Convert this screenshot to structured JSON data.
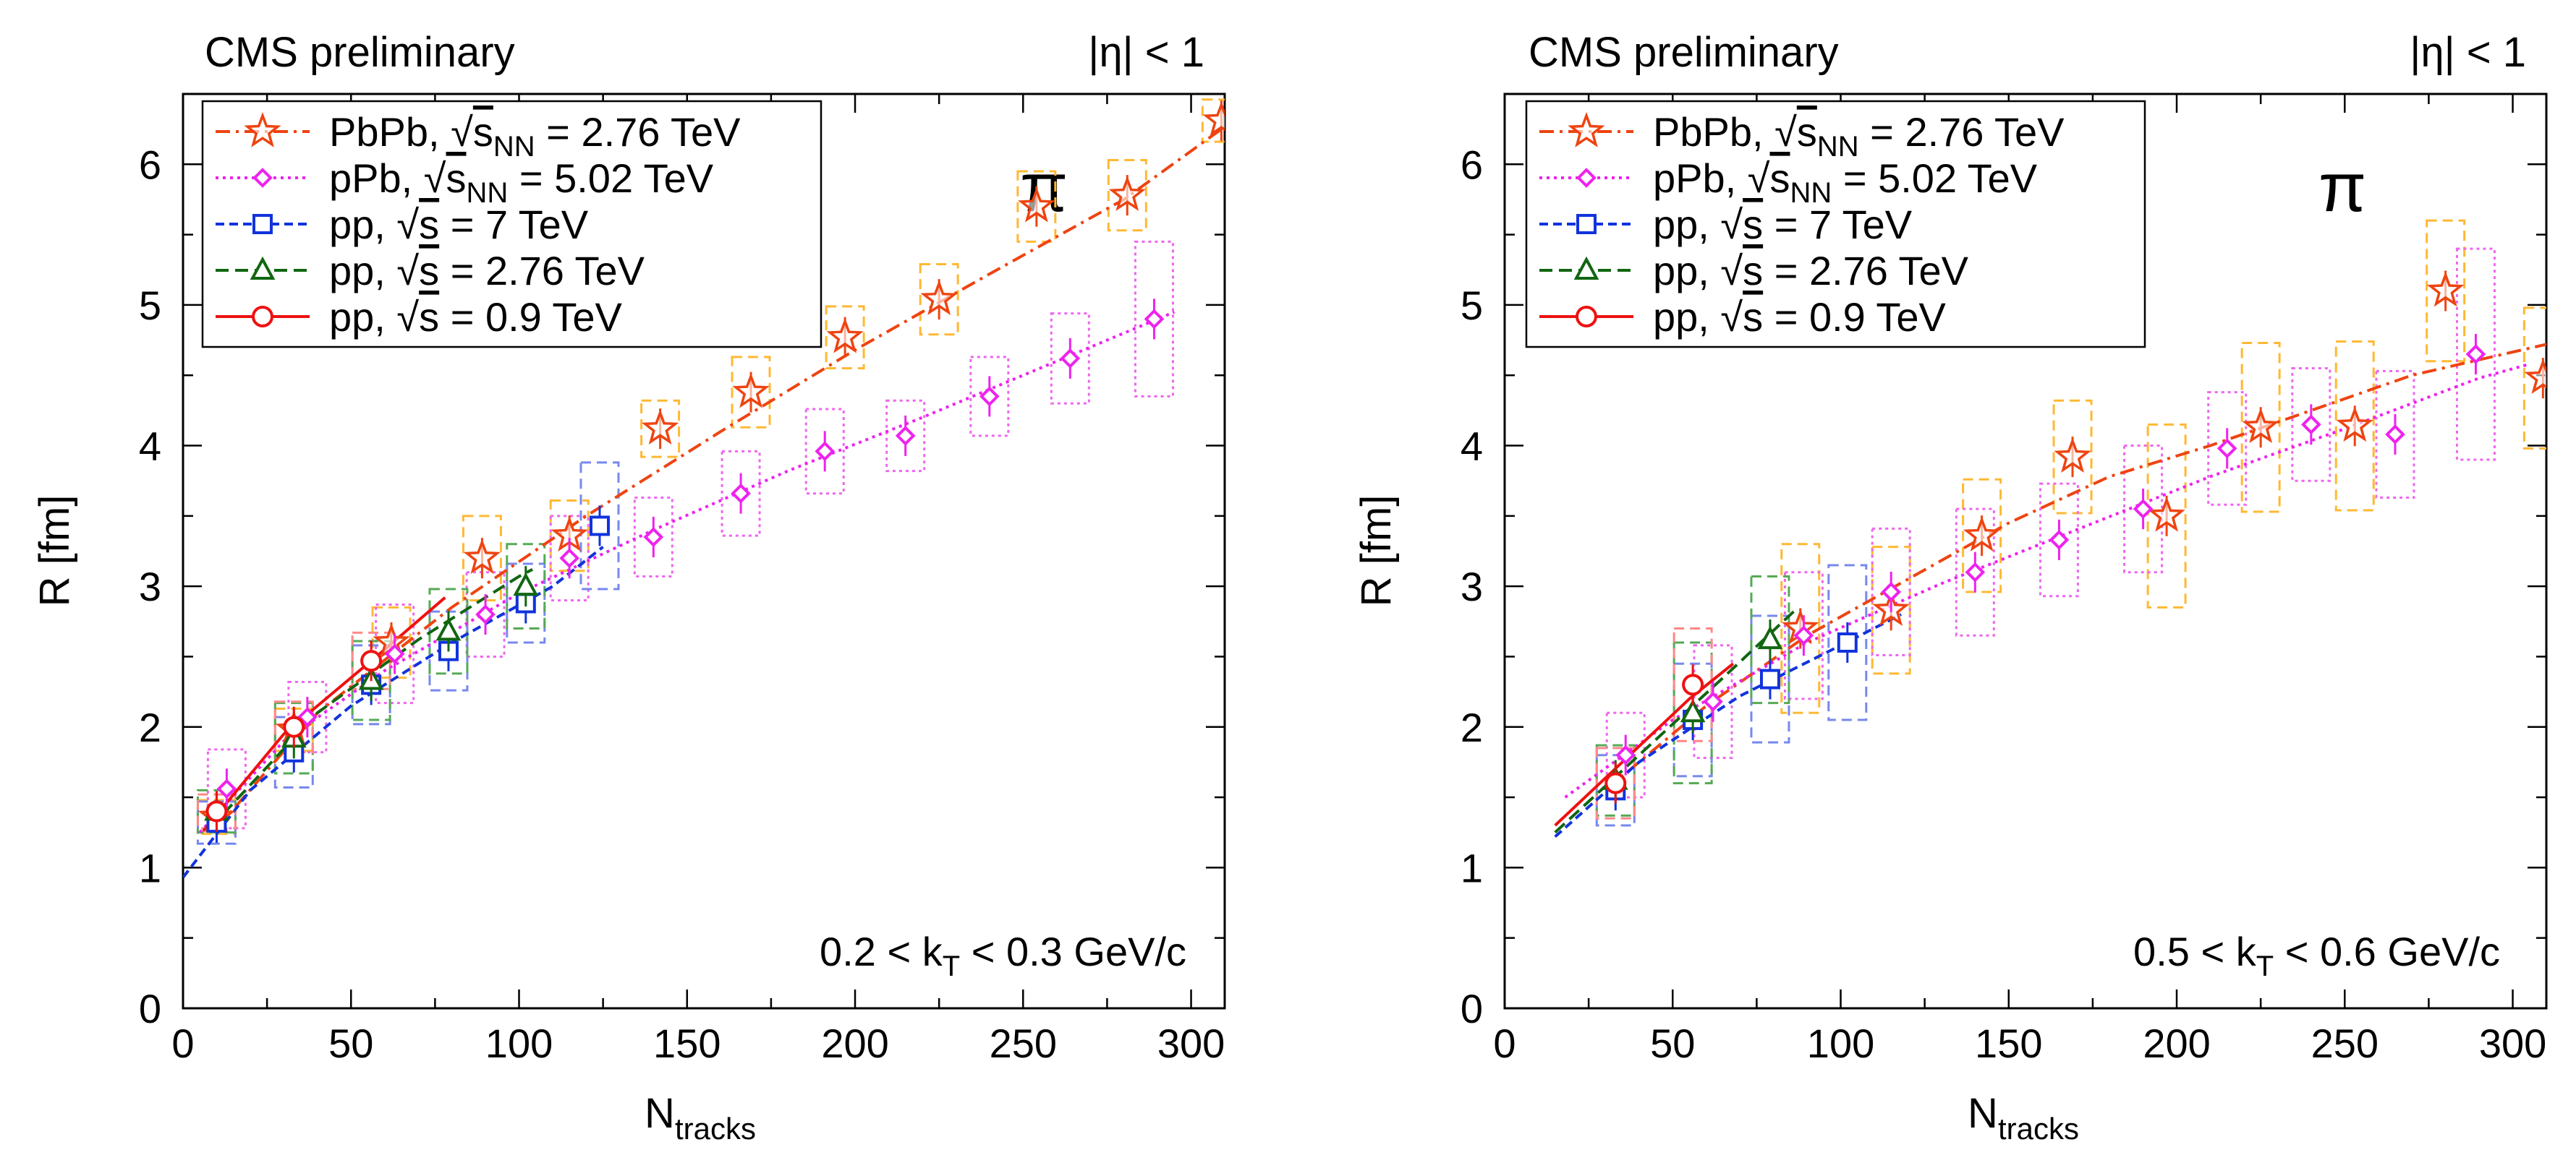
{
  "figure_title": "CMS preliminary two-panel HBT radius vs N_tracks",
  "legend_entries": [
    {
      "key": "pbpb",
      "collision": "PbPb, ",
      "sqrt": "s",
      "sub": "NN",
      "energy": " = 2.76 TeV",
      "color": "#ee4411",
      "box_color": "#ffb833",
      "marker": "star",
      "dash": "20,8,4,8"
    },
    {
      "key": "ppb",
      "collision": "pPb, ",
      "sqrt": "s",
      "sub": "NN",
      "energy": " = 5.02 TeV",
      "color": "#ee22ee",
      "box_color": "#ee66ee",
      "marker": "diamond",
      "dash": "4,6"
    },
    {
      "key": "pp7",
      "collision": "pp, ",
      "sqrt": "s",
      "sub": "",
      "energy": " = 7 TeV",
      "color": "#1133dd",
      "box_color": "#7788ee",
      "marker": "square",
      "dash": "12,7"
    },
    {
      "key": "pp276",
      "collision": "pp, ",
      "sqrt": "s",
      "sub": "",
      "energy": " = 2.76 TeV",
      "color": "#116611",
      "box_color": "#55aa55",
      "marker": "triangle",
      "dash": "18,9"
    },
    {
      "key": "pp09",
      "collision": "pp, ",
      "sqrt": "s",
      "sub": "",
      "energy": " = 0.9 TeV",
      "color": "#ee1111",
      "box_color": "#ff8888",
      "marker": "circle",
      "dash": ""
    }
  ],
  "chart_data": [
    {
      "type": "scatter",
      "panel": "left",
      "title_left": "CMS preliminary",
      "title_right": "|η| < 1",
      "particle_label": "π",
      "kt_label": {
        "prefix": "0.2 < k",
        "sub": "T",
        "suffix": " < 0.3 GeV/c"
      },
      "xlabel": {
        "main": "N",
        "sub": "tracks"
      },
      "ylabel": "R [fm]",
      "xlim": [
        0,
        310
      ],
      "ylim": [
        0,
        6.5
      ],
      "x_ticks": [
        0,
        50,
        100,
        150,
        200,
        250,
        300
      ],
      "x_tick_labels": [
        "0",
        "50",
        "100",
        "150",
        "200",
        "250",
        "300"
      ],
      "y_ticks": [
        0,
        1,
        2,
        3,
        4,
        5,
        6
      ],
      "y_tick_labels": [
        "0",
        "1",
        "2",
        "3",
        "4",
        "5",
        "6"
      ],
      "series": [
        {
          "key": "pbpb",
          "points": [
            [
              10,
              1.36
            ],
            [
              33,
              1.98
            ],
            [
              62,
              2.6
            ],
            [
              89,
              3.2
            ],
            [
              115,
              3.36
            ],
            [
              142,
              4.12
            ],
            [
              169,
              4.38
            ],
            [
              197,
              4.77
            ],
            [
              225,
              5.04
            ],
            [
              254,
              5.7
            ],
            [
              281,
              5.78
            ],
            [
              309,
              6.31
            ]
          ],
          "syst": [
            0.12,
            0.15,
            0.25,
            0.3,
            0.25,
            0.2,
            0.25,
            0.22,
            0.25,
            0.25,
            0.25,
            0.15
          ],
          "fit": [
            [
              10,
              1.28
            ],
            [
              40,
              2.1
            ],
            [
              80,
              2.85
            ],
            [
              120,
              3.5
            ],
            [
              160,
              4.1
            ],
            [
              200,
              4.68
            ],
            [
              240,
              5.22
            ],
            [
              280,
              5.75
            ],
            [
              309,
              6.25
            ]
          ]
        },
        {
          "key": "ppb",
          "points": [
            [
              13,
              1.56
            ],
            [
              37,
              2.07
            ],
            [
              63,
              2.52
            ],
            [
              90,
              2.8
            ],
            [
              115,
              3.2
            ],
            [
              140,
              3.35
            ],
            [
              166,
              3.66
            ],
            [
              191,
              3.96
            ],
            [
              215,
              4.07
            ],
            [
              240,
              4.35
            ],
            [
              264,
              4.62
            ],
            [
              289,
              4.9
            ]
          ],
          "syst": [
            0.28,
            0.25,
            0.35,
            0.3,
            0.3,
            0.28,
            0.3,
            0.3,
            0.25,
            0.28,
            0.32,
            0.55
          ],
          "fit": [
            [
              5,
              1.25
            ],
            [
              30,
              1.9
            ],
            [
              60,
              2.4
            ],
            [
              100,
              2.95
            ],
            [
              140,
              3.4
            ],
            [
              180,
              3.82
            ],
            [
              220,
              4.2
            ],
            [
              260,
              4.6
            ],
            [
              295,
              4.95
            ]
          ]
        },
        {
          "key": "pp7",
          "points": [
            [
              10,
              1.32
            ],
            [
              33,
              1.82
            ],
            [
              56,
              2.3
            ],
            [
              79,
              2.54
            ],
            [
              102,
              2.88
            ],
            [
              124,
              3.43
            ]
          ],
          "syst": [
            0.15,
            0.25,
            0.28,
            0.28,
            0.28,
            0.45
          ],
          "fit": [
            [
              0,
              0.93
            ],
            [
              20,
              1.55
            ],
            [
              50,
              2.15
            ],
            [
              80,
              2.6
            ],
            [
              110,
              3.0
            ],
            [
              125,
              3.28
            ]
          ]
        },
        {
          "key": "pp276",
          "points": [
            [
              10,
              1.4
            ],
            [
              33,
              1.92
            ],
            [
              56,
              2.33
            ],
            [
              79,
              2.68
            ],
            [
              102,
              3.0
            ]
          ],
          "syst": [
            0.15,
            0.25,
            0.28,
            0.3,
            0.3
          ],
          "fit": [
            [
              8,
              1.28
            ],
            [
              40,
              2.1
            ],
            [
              70,
              2.62
            ],
            [
              100,
              3.07
            ],
            [
              104,
              3.12
            ]
          ]
        },
        {
          "key": "pp09",
          "points": [
            [
              10,
              1.4
            ],
            [
              33,
              2.0
            ],
            [
              56,
              2.47
            ]
          ],
          "syst": [
            0.12,
            0.18,
            0.2
          ],
          "fit": [
            [
              6,
              1.26
            ],
            [
              30,
              1.95
            ],
            [
              60,
              2.55
            ],
            [
              78,
              2.92
            ]
          ]
        }
      ]
    },
    {
      "type": "scatter",
      "panel": "right",
      "title_left": "CMS preliminary",
      "title_right": "|η| < 1",
      "particle_label": "π",
      "kt_label": {
        "prefix": "0.5 < k",
        "sub": "T",
        "suffix": " < 0.6 GeV/c"
      },
      "xlabel": {
        "main": "N",
        "sub": "tracks"
      },
      "ylabel": "R [fm]",
      "xlim": [
        0,
        310
      ],
      "ylim": [
        0,
        6.5
      ],
      "x_ticks": [
        0,
        50,
        100,
        150,
        200,
        250,
        300
      ],
      "x_tick_labels": [
        "0",
        "50",
        "100",
        "150",
        "200",
        "250",
        "300"
      ],
      "y_ticks": [
        0,
        1,
        2,
        3,
        4,
        5,
        6
      ],
      "y_tick_labels": [
        "0",
        "1",
        "2",
        "3",
        "4",
        "5",
        "6"
      ],
      "series": [
        {
          "key": "pbpb",
          "points": [
            [
              88,
              2.7
            ],
            [
              115,
              2.83
            ],
            [
              142,
              3.36
            ],
            [
              169,
              3.92
            ],
            [
              197,
              3.5
            ],
            [
              225,
              4.13
            ],
            [
              253,
              4.14
            ],
            [
              280,
              5.1
            ],
            [
              309,
              4.48
            ]
          ],
          "syst": [
            0.6,
            0.45,
            0.4,
            0.4,
            0.65,
            0.6,
            0.6,
            0.5,
            0.5
          ],
          "fit": [
            [
              30,
              1.55
            ],
            [
              60,
              2.15
            ],
            [
              90,
              2.65
            ],
            [
              120,
              3.05
            ],
            [
              150,
              3.45
            ],
            [
              180,
              3.78
            ],
            [
              210,
              4.0
            ],
            [
              240,
              4.25
            ],
            [
              270,
              4.5
            ],
            [
              310,
              4.72
            ]
          ]
        },
        {
          "key": "ppb",
          "points": [
            [
              36,
              1.8
            ],
            [
              62,
              2.18
            ],
            [
              89,
              2.65
            ],
            [
              115,
              2.96
            ],
            [
              140,
              3.1
            ],
            [
              165,
              3.33
            ],
            [
              190,
              3.55
            ],
            [
              215,
              3.98
            ],
            [
              240,
              4.15
            ],
            [
              265,
              4.08
            ],
            [
              289,
              4.65
            ]
          ],
          "syst": [
            0.3,
            0.4,
            0.45,
            0.45,
            0.45,
            0.4,
            0.45,
            0.4,
            0.4,
            0.45,
            0.75
          ],
          "fit": [
            [
              18,
              1.5
            ],
            [
              50,
              2.05
            ],
            [
              90,
              2.6
            ],
            [
              130,
              3.02
            ],
            [
              170,
              3.4
            ],
            [
              210,
              3.78
            ],
            [
              250,
              4.12
            ],
            [
              290,
              4.48
            ],
            [
              305,
              4.58
            ]
          ]
        },
        {
          "key": "pp7",
          "points": [
            [
              33,
              1.55
            ],
            [
              56,
              2.05
            ],
            [
              79,
              2.34
            ],
            [
              102,
              2.6
            ]
          ],
          "syst": [
            0.25,
            0.4,
            0.45,
            0.55
          ],
          "fit": [
            [
              15,
              1.22
            ],
            [
              40,
              1.75
            ],
            [
              70,
              2.22
            ],
            [
              100,
              2.58
            ],
            [
              118,
              2.8
            ]
          ]
        },
        {
          "key": "pp276",
          "points": [
            [
              33,
              1.62
            ],
            [
              56,
              2.1
            ],
            [
              79,
              2.62
            ]
          ],
          "syst": [
            0.25,
            0.5,
            0.45
          ],
          "fit": [
            [
              15,
              1.25
            ],
            [
              40,
              1.8
            ],
            [
              65,
              2.35
            ],
            [
              86,
              2.82
            ]
          ]
        },
        {
          "key": "pp09",
          "points": [
            [
              33,
              1.6
            ],
            [
              56,
              2.3
            ]
          ],
          "syst": [
            0.25,
            0.4
          ],
          "fit": [
            [
              15,
              1.3
            ],
            [
              35,
              1.75
            ],
            [
              55,
              2.2
            ],
            [
              68,
              2.45
            ]
          ]
        }
      ]
    }
  ]
}
